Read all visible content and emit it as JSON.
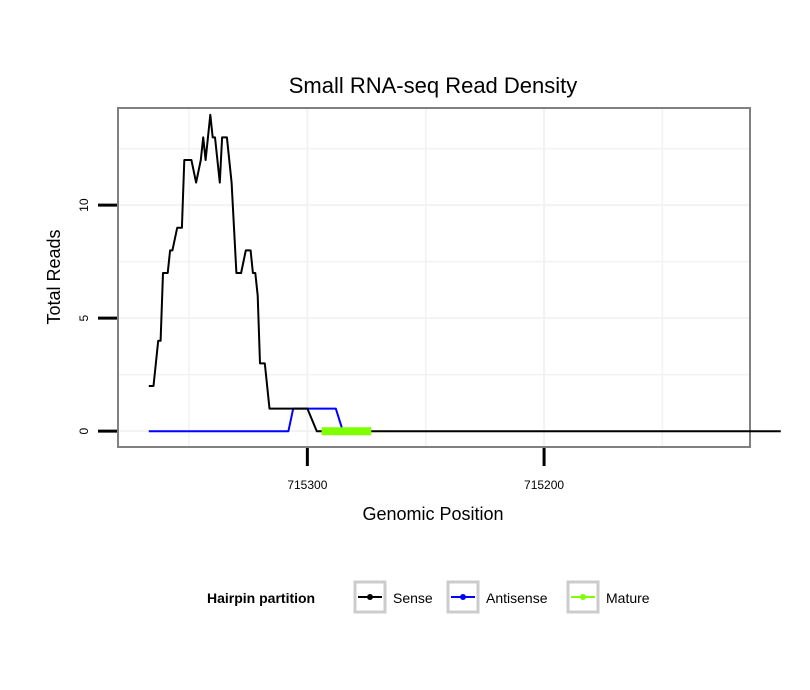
{
  "chart_data": {
    "type": "line",
    "title": "Small RNA-seq Read Density",
    "xlabel": "Genomic Position",
    "ylabel": "Total Reads",
    "x_reversed": true,
    "xlim": [
      715380,
      715113
    ],
    "ylim": [
      -0.7,
      14.3
    ],
    "x_ticks": [
      715300,
      715200
    ],
    "x_tick_labels": [
      "715300",
      "715200"
    ],
    "y_ticks": [
      0,
      5,
      10
    ],
    "y_tick_labels": [
      "0",
      "5",
      "10"
    ],
    "grid": true,
    "legend_position": "bottom",
    "legend_title": "Hairpin partition",
    "series": [
      {
        "name": "Sense",
        "color": "#000000",
        "x": [
          715367,
          715365,
          715363,
          715362,
          715361,
          715359,
          715358,
          715357,
          715355,
          715353,
          715352,
          715351,
          715350,
          715349,
          715347,
          715345,
          715344,
          715343,
          715341,
          715340,
          715339,
          715337,
          715336,
          715334,
          715332,
          715331,
          715330,
          715328,
          715326,
          715324,
          715323,
          715322,
          715321,
          715320,
          715318,
          715316,
          715314,
          715313,
          715312,
          715308,
          715300,
          715296,
          715288,
          715276,
          715260,
          715240,
          715180,
          715100
        ],
        "values": [
          2,
          2,
          4,
          4,
          7,
          7,
          8,
          8,
          9,
          9,
          12,
          12,
          12,
          12,
          11,
          12,
          13,
          12,
          14,
          13,
          13,
          11,
          13,
          13,
          11,
          9,
          7,
          7,
          8,
          8,
          7,
          7,
          6,
          3,
          3,
          1,
          1,
          1,
          1,
          1,
          1,
          0,
          0,
          0,
          0,
          0,
          0,
          0
        ]
      },
      {
        "name": "Antisense",
        "color": "#0000ff",
        "x": [
          715367,
          715320,
          715311,
          715308,
          715306,
          715290,
          715288,
          715285,
          715280
        ],
        "values": [
          0,
          0,
          0,
          0,
          1,
          1,
          1,
          0,
          0
        ]
      },
      {
        "name": "Mature",
        "color": "#7fff00",
        "x": [
          715294,
          715273
        ],
        "values": [
          0,
          0
        ]
      }
    ]
  }
}
